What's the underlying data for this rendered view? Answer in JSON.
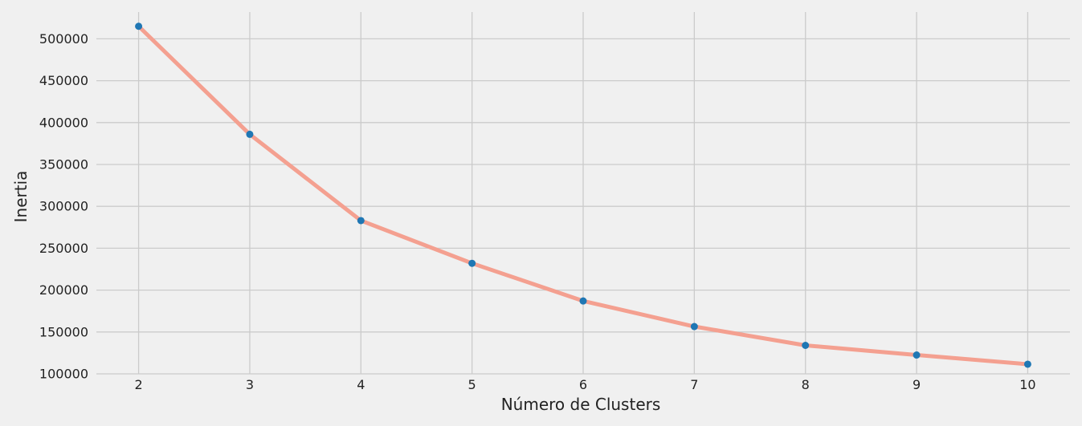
{
  "chart_data": {
    "type": "line",
    "title": "",
    "xlabel": "Número de Clusters",
    "ylabel": "Inertia",
    "x": [
      2,
      3,
      4,
      5,
      6,
      7,
      8,
      9,
      10
    ],
    "series": [
      {
        "values": [
          515000,
          386000,
          283000,
          232000,
          187000,
          156500,
          134000,
          122500,
          111500
        ],
        "line_color": "#f4a090",
        "marker_color": "#1f77b4"
      }
    ],
    "xlim": [
      1.62,
      10.38
    ],
    "ylim": [
      100000,
      532000
    ],
    "yticks": [
      100000,
      150000,
      200000,
      250000,
      300000,
      350000,
      400000,
      450000,
      500000
    ],
    "xticks": [
      2,
      3,
      4,
      5,
      6,
      7,
      8,
      9,
      10
    ],
    "grid": true,
    "background_color": "#f0f0f0"
  }
}
